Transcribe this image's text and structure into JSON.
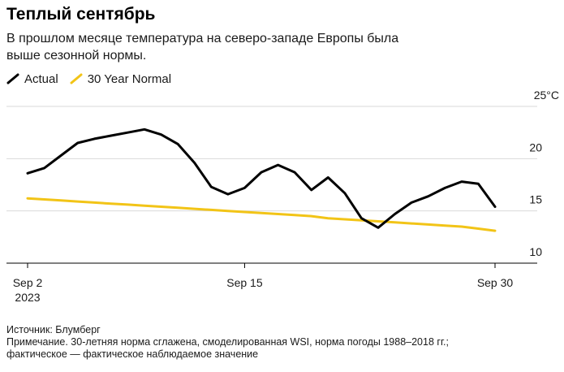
{
  "header": {
    "title": "Теплый сентябрь",
    "subtitle": "В прошлом месяце температура на северо-западе Европы была выше сезонной нормы."
  },
  "legend": {
    "actual_label": "Actual",
    "normal_label": "30 Year Normal"
  },
  "colors": {
    "actual": "#000000",
    "normal": "#f2c417",
    "grid": "#d9d9d9",
    "axis": "#000000"
  },
  "footer": {
    "source": "Источник: Блумберг",
    "note_line1": "Примечание. 30-летняя норма сглажена, смоделированная WSI, норма погоды 1988–2018 гг.;",
    "note_line2": "фактическое — фактическое наблюдаемое значение"
  },
  "chart_data": {
    "type": "line",
    "title": "Теплый сентябрь",
    "xlabel": "",
    "ylabel": "°C",
    "x_range": [
      2,
      30
    ],
    "ylim": [
      10,
      25
    ],
    "y_ticks": [
      {
        "value": 25,
        "label": "25°C"
      },
      {
        "value": 20,
        "label": "20"
      },
      {
        "value": 15,
        "label": "15"
      },
      {
        "value": 10,
        "label": "10"
      }
    ],
    "x_ticks": [
      {
        "value": 2,
        "label": "Sep 2",
        "sublabel": "2023"
      },
      {
        "value": 15,
        "label": "Sep 15"
      },
      {
        "value": 30,
        "label": "Sep 30"
      }
    ],
    "x": [
      2,
      3,
      4,
      5,
      6,
      7,
      8,
      9,
      10,
      11,
      12,
      13,
      14,
      15,
      16,
      17,
      18,
      19,
      20,
      21,
      22,
      23,
      24,
      25,
      26,
      27,
      28,
      29,
      30
    ],
    "series": [
      {
        "name": "Actual",
        "values": [
          18.6,
          19.1,
          20.3,
          21.5,
          21.9,
          22.2,
          22.5,
          22.8,
          22.3,
          21.4,
          19.6,
          17.3,
          16.6,
          17.2,
          18.7,
          19.4,
          18.7,
          17.0,
          18.2,
          16.7,
          14.3,
          13.4,
          14.7,
          15.8,
          16.4,
          17.2,
          17.8,
          17.6,
          15.4
        ]
      },
      {
        "name": "30 Year Normal",
        "values": [
          16.2,
          16.1,
          16.0,
          15.9,
          15.8,
          15.7,
          15.6,
          15.5,
          15.4,
          15.3,
          15.2,
          15.1,
          15.0,
          14.9,
          14.8,
          14.7,
          14.6,
          14.5,
          14.3,
          14.2,
          14.1,
          14.0,
          13.9,
          13.8,
          13.7,
          13.6,
          13.5,
          13.3,
          13.1
        ]
      }
    ]
  }
}
